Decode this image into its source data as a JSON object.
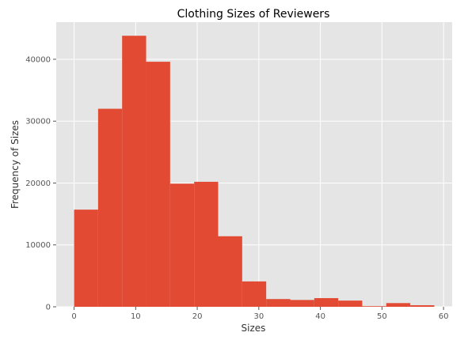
{
  "chart_data": {
    "type": "bar",
    "title": "Clothing Sizes of Reviewers",
    "xlabel": "Sizes",
    "ylabel": "Frequency of Sizes",
    "bin_edges": [
      0,
      3.9,
      7.8,
      11.7,
      15.6,
      19.5,
      23.4,
      27.3,
      31.2,
      35.1,
      39.0,
      42.9,
      46.8,
      50.7,
      54.6,
      58.5
    ],
    "values": [
      15700,
      32000,
      43800,
      39600,
      19900,
      20200,
      11400,
      4100,
      1250,
      1100,
      1400,
      1000,
      100,
      600,
      250
    ],
    "xlim": [
      -2.9,
      61.4
    ],
    "ylim": [
      0,
      46000
    ],
    "xticks": [
      0,
      10,
      20,
      30,
      40,
      50,
      60
    ],
    "yticks": [
      0,
      10000,
      20000,
      30000,
      40000
    ],
    "grid": true,
    "colors": {
      "bar": "#e24a33",
      "background": "#e5e5e5",
      "grid": "#ffffff"
    }
  }
}
